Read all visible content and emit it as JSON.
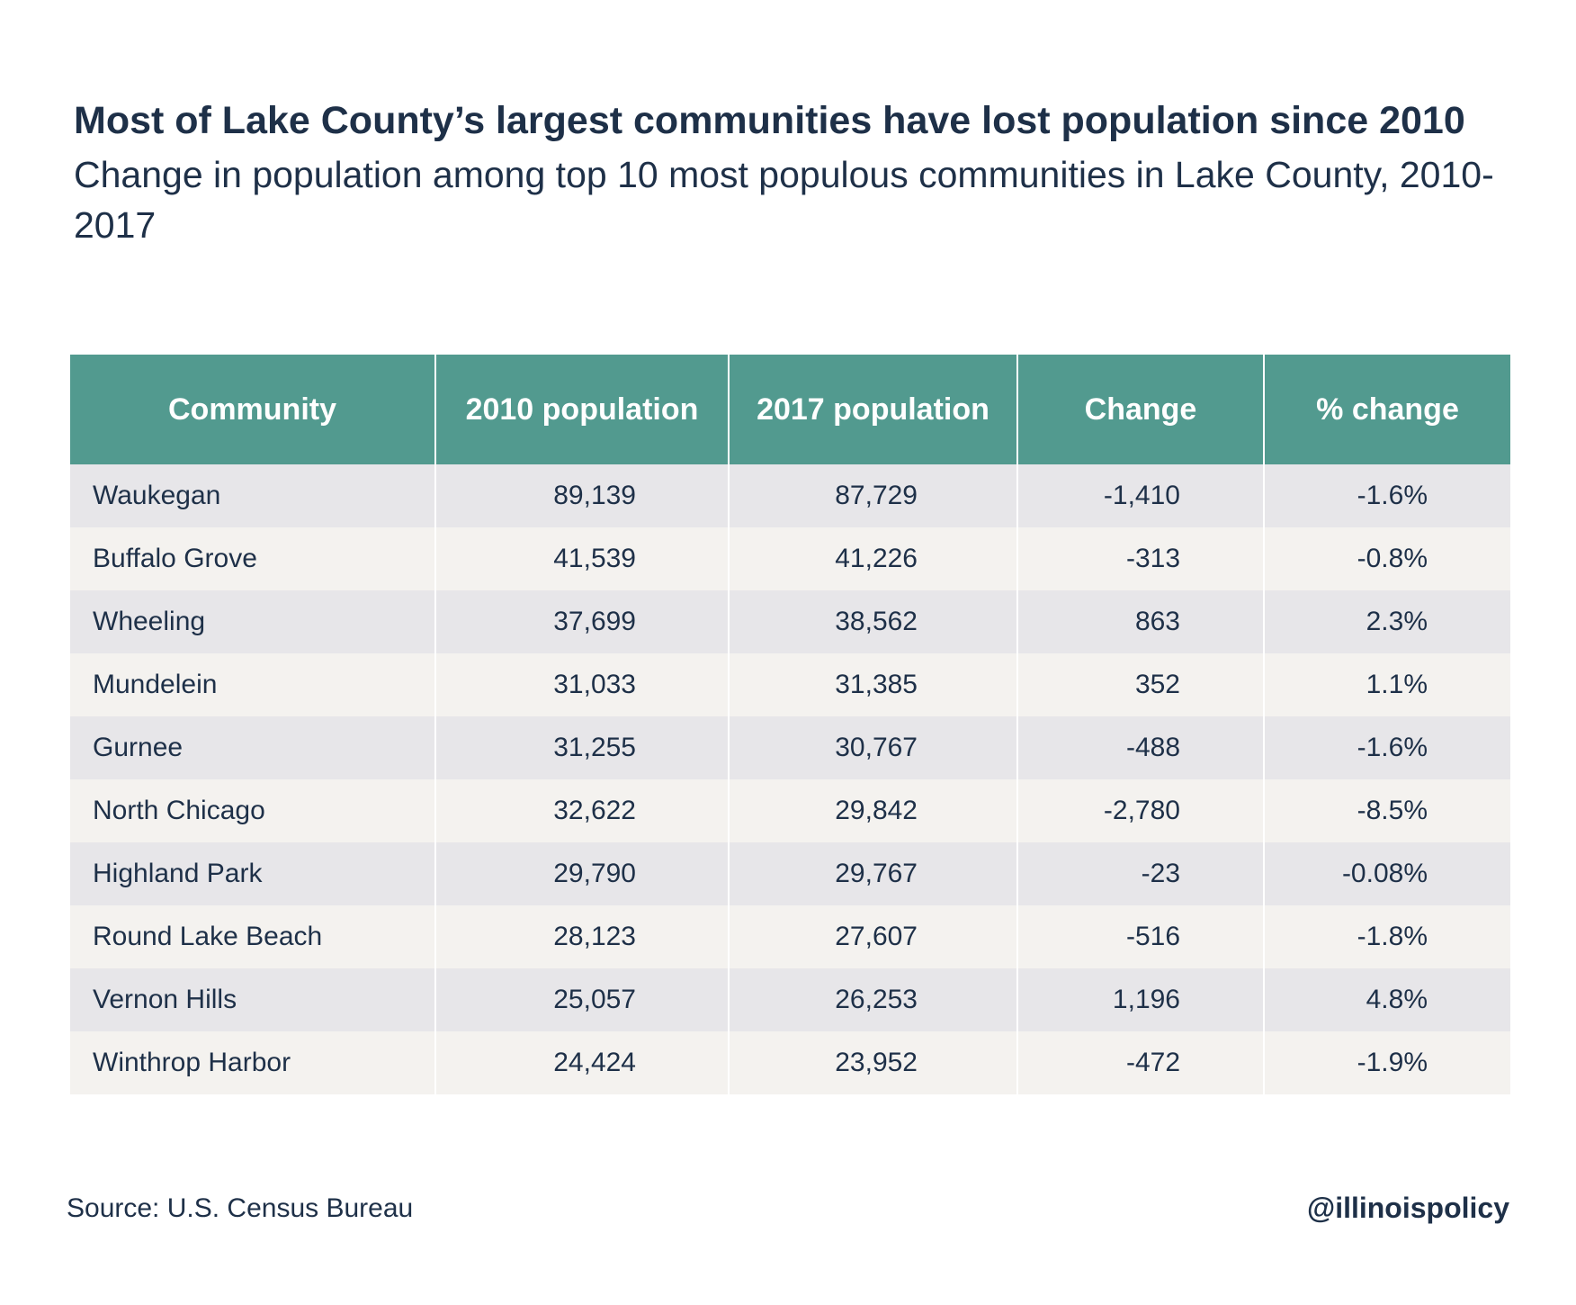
{
  "chart_data": {
    "type": "table",
    "title": "Most of Lake County’s largest communities have lost population since 2010",
    "subtitle": "Change in population among top 10 most populous communities in Lake County, 2010-2017",
    "columns": [
      "Community",
      "2010 population",
      "2017 population",
      "Change",
      "% change"
    ],
    "rows": [
      [
        "Waukegan",
        "89,139",
        "87,729",
        "-1,410",
        "-1.6%"
      ],
      [
        "Buffalo Grove",
        "41,539",
        "41,226",
        "-313",
        "-0.8%"
      ],
      [
        "Wheeling",
        "37,699",
        "38,562",
        "863",
        "2.3%"
      ],
      [
        "Mundelein",
        "31,033",
        "31,385",
        "352",
        "1.1%"
      ],
      [
        "Gurnee",
        "31,255",
        "30,767",
        "-488",
        "-1.6%"
      ],
      [
        "North Chicago",
        "32,622",
        "29,842",
        "-2,780",
        "-8.5%"
      ],
      [
        "Highland Park",
        "29,790",
        "29,767",
        "-23",
        "-0.08%"
      ],
      [
        "Round Lake Beach",
        "28,123",
        "27,607",
        "-516",
        "-1.8%"
      ],
      [
        "Vernon Hills",
        "25,057",
        "26,253",
        "1,196",
        "4.8%"
      ],
      [
        "Winthrop Harbor",
        "24,424",
        "23,952",
        "-472",
        "-1.9%"
      ]
    ],
    "source": "Source: U.S. Census Bureau",
    "credit": "@illinoispolicy",
    "colors": {
      "header_bg": "#529a8f",
      "header_text": "#ffffff",
      "row_odd": "#e7e6e9",
      "row_even": "#f4f2ef",
      "text": "#1e3048"
    }
  }
}
